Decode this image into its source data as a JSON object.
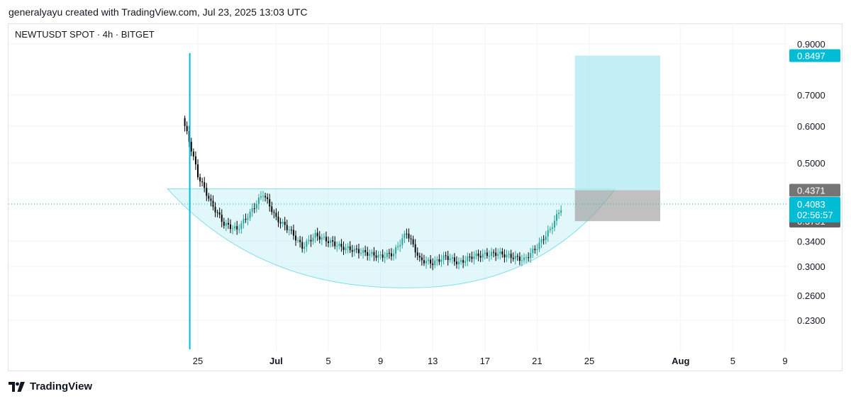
{
  "header": {
    "credit": "generalyayu created with TradingView.com, Jul 23, 2025 13:03 UTC"
  },
  "chart_header": {
    "symbol_line": "NEWTUSDT SPOT · 4h · BITGET"
  },
  "footer": {
    "brand": "TradingView"
  },
  "colors": {
    "up": "#26a69a",
    "down": "#000000",
    "accent": "#00bcd4",
    "target_zone": "#b2ebf2",
    "stop_zone": "#9e9e9e",
    "cup_fill": "#b2ebf2",
    "grid": "#f0f3fa"
  },
  "chart_data": {
    "type": "candlestick",
    "title": "NEWTUSDT SPOT · 4h · BITGET",
    "y_scale": "log",
    "ylim": [
      0.2,
      0.95
    ],
    "y_ticks": [
      "0.9000",
      "0.7000",
      "0.6000",
      "0.5000",
      "0.3400",
      "0.3000",
      "0.2600",
      "0.2300"
    ],
    "x_ticks": [
      "25",
      "Jul",
      "5",
      "9",
      "13",
      "17",
      "21",
      "25",
      "Aug",
      "5",
      "9"
    ],
    "x_tick_dates": [
      "2025-06-25",
      "2025-07-01",
      "2025-07-05",
      "2025-07-09",
      "2025-07-13",
      "2025-07-17",
      "2025-07-21",
      "2025-07-25",
      "2025-08-01",
      "2025-08-05",
      "2025-08-09"
    ],
    "listing_date": "2025-06-24",
    "last_price": "0.4083",
    "countdown": "02:56:57",
    "price_labels": {
      "target": "0.8497",
      "entry": "0.4371",
      "last": "0.4083",
      "stop": "0.3751"
    },
    "position": {
      "start": "2025-07-24",
      "end": "2025-07-30",
      "target": 0.8497,
      "entry": 0.4371,
      "stop": 0.3751
    },
    "cup_pattern": {
      "rim_price": 0.44,
      "bottom_price": 0.27,
      "bottom_date": "2025-07-11"
    },
    "close_series": [
      {
        "date": "2025-06-24",
        "close": 0.6
      },
      {
        "date": "2025-06-25",
        "close": 0.47
      },
      {
        "date": "2025-06-26",
        "close": 0.41
      },
      {
        "date": "2025-06-27",
        "close": 0.37
      },
      {
        "date": "2025-06-28",
        "close": 0.36
      },
      {
        "date": "2025-06-29",
        "close": 0.39
      },
      {
        "date": "2025-06-30",
        "close": 0.43
      },
      {
        "date": "2025-07-01",
        "close": 0.38
      },
      {
        "date": "2025-07-02",
        "close": 0.36
      },
      {
        "date": "2025-07-03",
        "close": 0.33
      },
      {
        "date": "2025-07-04",
        "close": 0.35
      },
      {
        "date": "2025-07-05",
        "close": 0.34
      },
      {
        "date": "2025-07-06",
        "close": 0.33
      },
      {
        "date": "2025-07-07",
        "close": 0.325
      },
      {
        "date": "2025-07-08",
        "close": 0.32
      },
      {
        "date": "2025-07-09",
        "close": 0.315
      },
      {
        "date": "2025-07-10",
        "close": 0.32
      },
      {
        "date": "2025-07-11",
        "close": 0.355
      },
      {
        "date": "2025-07-12",
        "close": 0.31
      },
      {
        "date": "2025-07-13",
        "close": 0.305
      },
      {
        "date": "2025-07-14",
        "close": 0.315
      },
      {
        "date": "2025-07-15",
        "close": 0.305
      },
      {
        "date": "2025-07-16",
        "close": 0.315
      },
      {
        "date": "2025-07-17",
        "close": 0.318
      },
      {
        "date": "2025-07-18",
        "close": 0.32
      },
      {
        "date": "2025-07-19",
        "close": 0.315
      },
      {
        "date": "2025-07-20",
        "close": 0.31
      },
      {
        "date": "2025-07-21",
        "close": 0.33
      },
      {
        "date": "2025-07-22",
        "close": 0.36
      },
      {
        "date": "2025-07-23",
        "close": 0.4083
      }
    ]
  }
}
